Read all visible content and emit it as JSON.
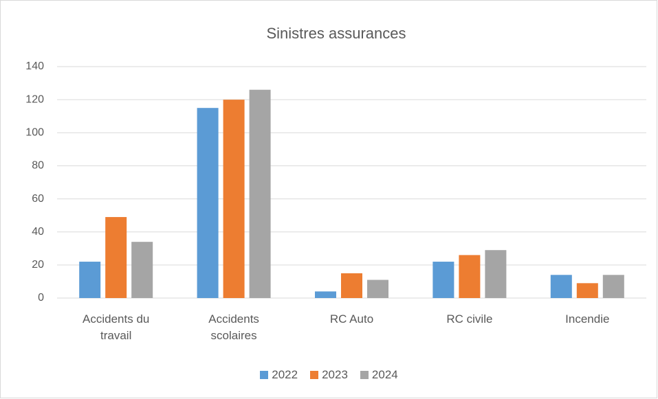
{
  "chart_data": {
    "type": "bar",
    "title": "Sinistres assurances",
    "categories": [
      "Accidents du travail",
      "Accidents scolaires",
      "RC Auto",
      "RC civile",
      "Incendie"
    ],
    "series": [
      {
        "name": "2022",
        "color": "#5b9bd5",
        "values": [
          22,
          115,
          4,
          22,
          14
        ]
      },
      {
        "name": "2023",
        "color": "#ed7d31",
        "values": [
          49,
          120,
          15,
          26,
          9
        ]
      },
      {
        "name": "2024",
        "color": "#a5a5a5",
        "values": [
          34,
          126,
          11,
          29,
          14
        ]
      }
    ],
    "ylim": [
      0,
      140
    ],
    "yticks": [
      0,
      20,
      40,
      60,
      80,
      100,
      120,
      140
    ],
    "grid": true,
    "legend": "bottom"
  }
}
